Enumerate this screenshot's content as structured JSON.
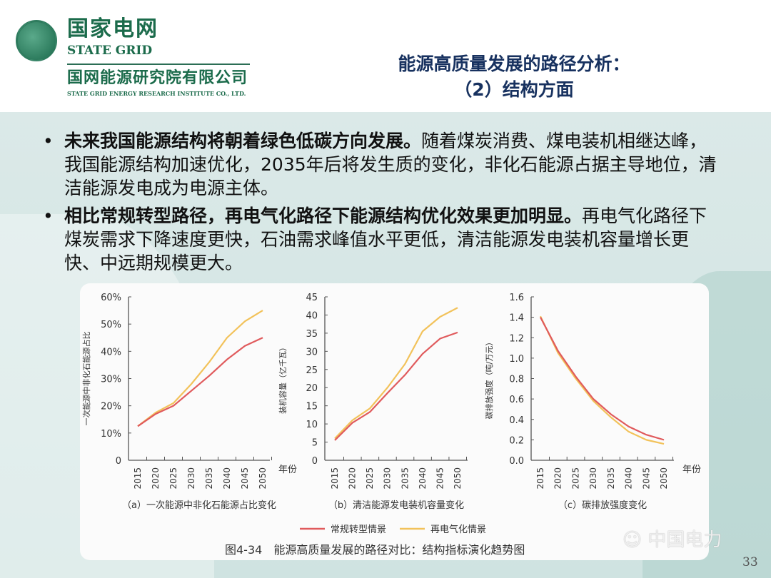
{
  "logo": {
    "cn": "国家电网",
    "en": "STATE GRID",
    "institute_cn": "国网能源研究院有限公司",
    "institute_en": "STATE GRID ENERGY RESEARCH INSTITUTE CO., LTD."
  },
  "title": {
    "line1": "能源高质量发展的路径分析：",
    "line2": "（2）结构方面"
  },
  "bullets": [
    {
      "bold": "未来我国能源结构将朝着绿色低碳方向发展。",
      "text": "随着煤炭消费、煤电装机相继达峰，我国能源结构加速优化，2035年后将发生质的变化，非化石能源占据主导地位，清洁能源发电成为电源主体。"
    },
    {
      "bold": "相比常规转型路径，再电气化路径下能源结构优化效果更加明显。",
      "text": "再电气化路径下煤炭需求下降速度更快，石油需求峰值水平更低，清洁能源发电装机容量增长更快、中远期规模更大。"
    }
  ],
  "bullet_symbol": "•",
  "legend": {
    "series1": "常规转型情景",
    "series2": "再电气化情景"
  },
  "figure_caption": "图4-34　能源高质量发展的路径对比：结构指标演化趋势图",
  "watermark": "中国电力",
  "page_number": "33",
  "colors": {
    "series1": "#e05a5c",
    "series2": "#f2c25a",
    "title": "#17315f",
    "logo": "#1b6b4b"
  },
  "chart_data": [
    {
      "type": "line",
      "subtitle": "（a）一次能源中非化石能源占比变化",
      "ylabel": "一次能源中非化石能源占比",
      "xlabel": "年份",
      "x": [
        2015,
        2020,
        2025,
        2030,
        2035,
        2040,
        2045,
        2050
      ],
      "yticks": [
        "0",
        "10%",
        "20%",
        "30%",
        "40%",
        "50%",
        "60%"
      ],
      "ylim": [
        0,
        60
      ],
      "series": [
        {
          "name": "常规转型情景",
          "values": [
            12.5,
            17,
            20,
            25.5,
            31,
            37,
            42,
            45
          ]
        },
        {
          "name": "再电气化情景",
          "values": [
            12.5,
            17.5,
            21,
            28,
            36,
            45,
            51,
            55
          ]
        }
      ]
    },
    {
      "type": "line",
      "subtitle": "（b）清洁能源发电装机容量变化",
      "ylabel": "装机容量（亿千瓦）",
      "xlabel": "",
      "x": [
        2015,
        2020,
        2025,
        2030,
        2035,
        2040,
        2045,
        2050
      ],
      "yticks": [
        "0",
        "5",
        "10",
        "15",
        "20",
        "25",
        "30",
        "35",
        "40",
        "45"
      ],
      "ylim": [
        0,
        45
      ],
      "series": [
        {
          "name": "常规转型情景",
          "values": [
            5.5,
            10.3,
            13.3,
            18.5,
            23.5,
            29.3,
            33.5,
            35.2
          ]
        },
        {
          "name": "再电气化情景",
          "values": [
            6,
            11,
            14.3,
            20,
            26.5,
            35.5,
            39.5,
            42
          ]
        }
      ]
    },
    {
      "type": "line",
      "subtitle": "（c）碳排放强度变化",
      "ylabel": "碳排放强度（吨/万元）",
      "xlabel": "年份",
      "x": [
        2015,
        2020,
        2025,
        2030,
        2035,
        2040,
        2045,
        2050
      ],
      "yticks": [
        "0.0",
        "0.2",
        "0.4",
        "0.6",
        "0.8",
        "1.0",
        "1.2",
        "1.4",
        "1.6"
      ],
      "ylim": [
        0,
        1.6
      ],
      "series": [
        {
          "name": "常规转型情景",
          "values": [
            1.4,
            1.07,
            0.82,
            0.6,
            0.45,
            0.33,
            0.25,
            0.2
          ]
        },
        {
          "name": "再电气化情景",
          "values": [
            1.41,
            1.05,
            0.8,
            0.58,
            0.42,
            0.28,
            0.2,
            0.16
          ]
        }
      ]
    }
  ]
}
